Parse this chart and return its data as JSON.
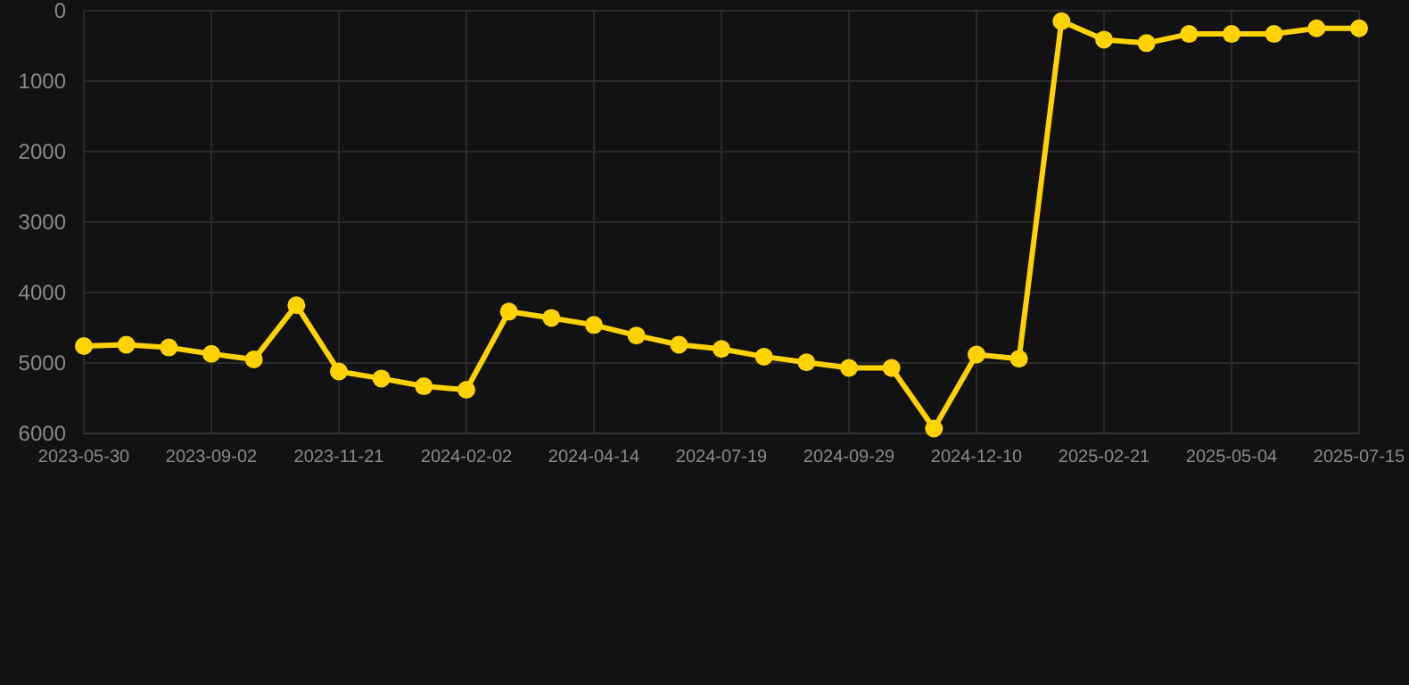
{
  "chart_data": {
    "type": "line",
    "categories": [
      "2023-05-30",
      null,
      null,
      "2023-09-02",
      null,
      null,
      "2023-11-21",
      null,
      null,
      "2024-02-02",
      null,
      null,
      "2024-04-14",
      null,
      null,
      "2024-07-19",
      null,
      null,
      "2024-09-29",
      null,
      null,
      "2024-12-10",
      null,
      null,
      "2025-02-21",
      null,
      null,
      "2025-05-04",
      null,
      null,
      "2025-07-15"
    ],
    "series": [
      {
        "color": "#ffd200",
        "values": [
          4760,
          4740,
          4780,
          4870,
          4950,
          4180,
          5120,
          5220,
          5330,
          5380,
          4270,
          4360,
          4460,
          4610,
          4740,
          4800,
          4910,
          4990,
          5070,
          5070,
          5930,
          4880,
          4940,
          150,
          410,
          460,
          330,
          330,
          330,
          250,
          250
        ]
      }
    ],
    "ylim": [
      6000,
      0
    ],
    "yticks": [
      0,
      1000,
      2000,
      3000,
      4000,
      5000,
      6000
    ],
    "grid": true,
    "marker": "circle",
    "line_style": "solid"
  }
}
